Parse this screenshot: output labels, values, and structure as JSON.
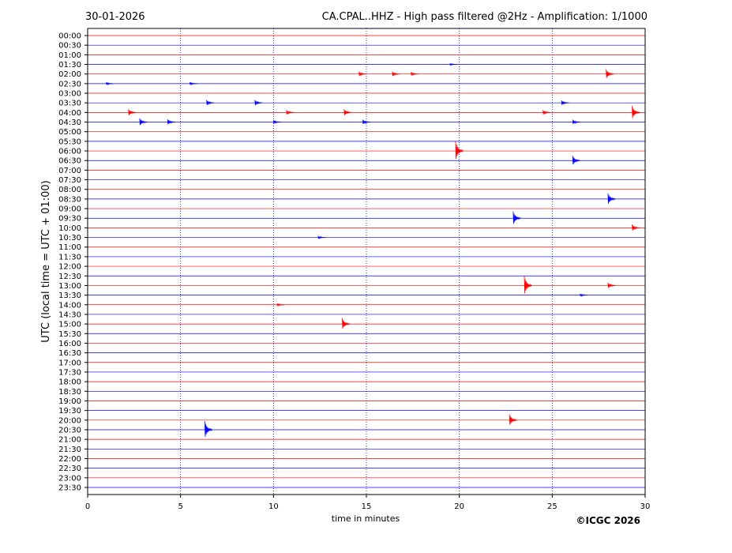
{
  "chart_data": {
    "type": "helicorder",
    "date": "30-01-2026",
    "title": "CA.CPAL..HHZ - High pass filtered @2Hz - Amplification: 1/1000",
    "y_label": "UTC (local time = UTC + 01:00)",
    "x_label": "time in minutes",
    "copyright": "©ICGC 2026",
    "xlim": [
      0,
      30
    ],
    "xticks": [
      0,
      5,
      10,
      15,
      20,
      25,
      30
    ],
    "colors": [
      "#ff0000",
      "#0000ff"
    ],
    "categories": [
      "00:00",
      "00:30",
      "01:00",
      "01:30",
      "02:00",
      "02:30",
      "03:00",
      "03:30",
      "04:00",
      "04:30",
      "05:00",
      "05:30",
      "06:00",
      "06:30",
      "07:00",
      "07:30",
      "08:00",
      "08:30",
      "09:00",
      "09:30",
      "10:00",
      "10:30",
      "11:00",
      "11:30",
      "12:00",
      "12:30",
      "13:00",
      "13:30",
      "14:00",
      "14:30",
      "15:00",
      "15:30",
      "16:00",
      "16:30",
      "17:00",
      "17:30",
      "18:00",
      "18:30",
      "19:00",
      "19:30",
      "20:00",
      "20:30",
      "21:00",
      "21:30",
      "22:00",
      "22:30",
      "23:00",
      "23:30"
    ],
    "traces": [
      {
        "events": []
      },
      {
        "events": []
      },
      {
        "events": []
      },
      {
        "events": [
          {
            "x": 19.5,
            "amplitude": 0.1
          }
        ]
      },
      {
        "events": [
          {
            "x": 14.6,
            "amplitude": 0.25
          },
          {
            "x": 16.4,
            "amplitude": 0.25
          },
          {
            "x": 17.4,
            "amplitude": 0.2
          },
          {
            "x": 27.9,
            "amplitude": 0.5
          }
        ]
      },
      {
        "events": [
          {
            "x": 1.0,
            "amplitude": 0.15
          },
          {
            "x": 5.5,
            "amplitude": 0.15
          }
        ]
      },
      {
        "events": []
      },
      {
        "events": [
          {
            "x": 6.4,
            "amplitude": 0.3
          },
          {
            "x": 9.0,
            "amplitude": 0.3
          },
          {
            "x": 25.5,
            "amplitude": 0.25
          }
        ]
      },
      {
        "events": [
          {
            "x": 2.2,
            "amplitude": 0.35
          },
          {
            "x": 10.7,
            "amplitude": 0.25
          },
          {
            "x": 13.8,
            "amplitude": 0.35
          },
          {
            "x": 24.5,
            "amplitude": 0.25
          },
          {
            "x": 29.3,
            "amplitude": 0.7
          }
        ]
      },
      {
        "events": [
          {
            "x": 2.8,
            "amplitude": 0.4
          },
          {
            "x": 4.3,
            "amplitude": 0.3
          },
          {
            "x": 10.0,
            "amplitude": 0.2
          },
          {
            "x": 14.8,
            "amplitude": 0.25
          },
          {
            "x": 26.1,
            "amplitude": 0.25
          }
        ]
      },
      {
        "events": []
      },
      {
        "events": []
      },
      {
        "events": [
          {
            "x": 19.8,
            "amplitude": 1.0
          }
        ]
      },
      {
        "events": [
          {
            "x": 26.1,
            "amplitude": 0.5
          }
        ]
      },
      {
        "events": []
      },
      {
        "events": []
      },
      {
        "events": []
      },
      {
        "events": [
          {
            "x": 28.0,
            "amplitude": 0.6
          }
        ]
      },
      {
        "events": []
      },
      {
        "events": [
          {
            "x": 22.9,
            "amplitude": 0.7
          }
        ]
      },
      {
        "events": [
          {
            "x": 29.3,
            "amplitude": 0.35
          }
        ]
      },
      {
        "events": [
          {
            "x": 12.4,
            "amplitude": 0.15
          }
        ]
      },
      {
        "events": []
      },
      {
        "events": []
      },
      {
        "events": []
      },
      {
        "events": []
      },
      {
        "events": [
          {
            "x": 23.5,
            "amplitude": 1.0
          },
          {
            "x": 28.0,
            "amplitude": 0.3
          }
        ]
      },
      {
        "events": [
          {
            "x": 26.5,
            "amplitude": 0.15
          }
        ]
      },
      {
        "events": [
          {
            "x": 10.2,
            "amplitude": 0.15
          }
        ]
      },
      {
        "events": []
      },
      {
        "events": [
          {
            "x": 13.7,
            "amplitude": 0.6
          }
        ]
      },
      {
        "events": []
      },
      {
        "events": []
      },
      {
        "events": []
      },
      {
        "events": []
      },
      {
        "events": []
      },
      {
        "events": []
      },
      {
        "events": []
      },
      {
        "events": []
      },
      {
        "events": []
      },
      {
        "events": [
          {
            "x": 22.7,
            "amplitude": 0.6
          }
        ]
      },
      {
        "events": [
          {
            "x": 6.3,
            "amplitude": 0.9
          }
        ]
      },
      {
        "events": []
      },
      {
        "events": []
      },
      {
        "events": []
      },
      {
        "events": []
      },
      {
        "events": []
      },
      {
        "events": []
      }
    ]
  }
}
